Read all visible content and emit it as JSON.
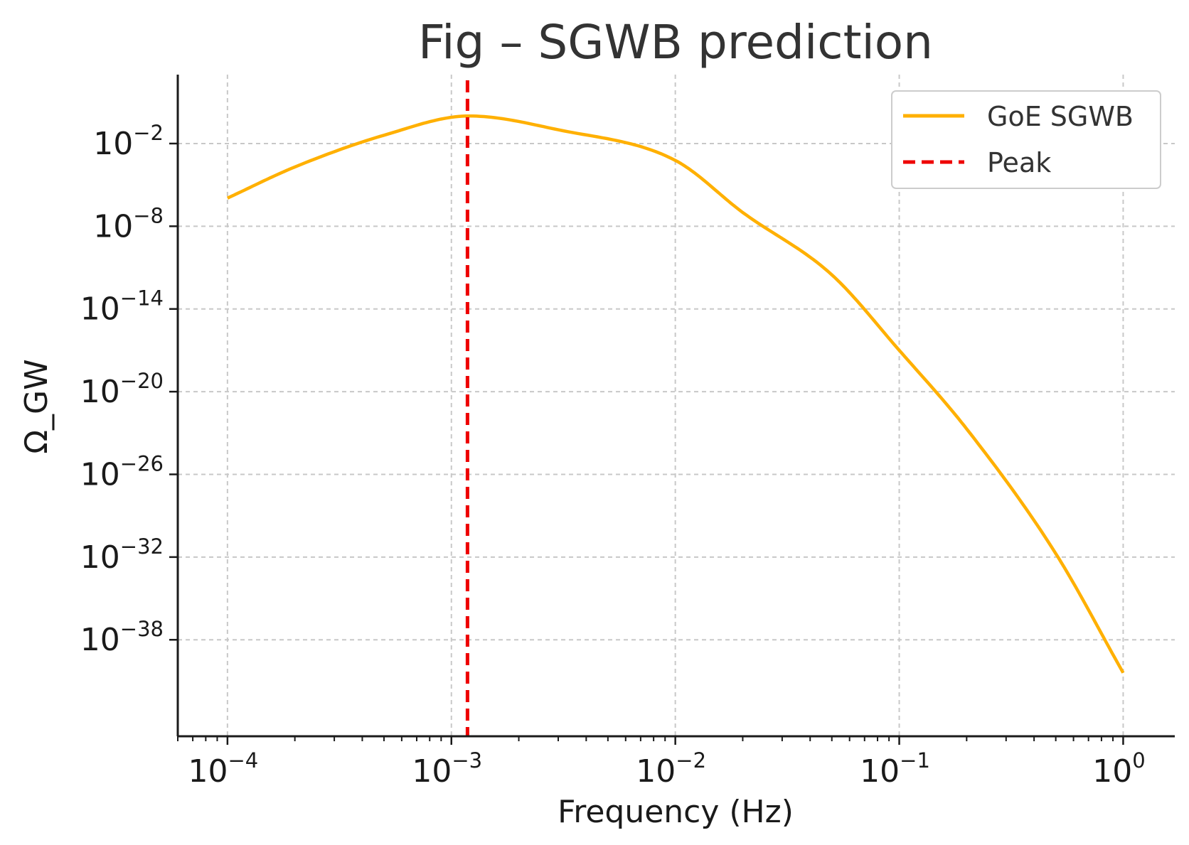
{
  "chart_data": {
    "type": "line",
    "title": "Fig – SGWB prediction",
    "xlabel": "Frequency (Hz)",
    "ylabel": "Ω_GW",
    "x_scale": "log",
    "y_scale": "log",
    "xlim": [
      6e-05,
      1.7
    ],
    "ylim": [
      1e-45,
      1000.0
    ],
    "grid": true,
    "legend_position": "top-right",
    "x_ticks": [
      {
        "value": 0.0001,
        "base": "10",
        "exp": "−4"
      },
      {
        "value": 0.001,
        "base": "10",
        "exp": "−3"
      },
      {
        "value": 0.01,
        "base": "10",
        "exp": "−2"
      },
      {
        "value": 0.1,
        "base": "10",
        "exp": "−1"
      },
      {
        "value": 1,
        "base": "10",
        "exp": "0"
      }
    ],
    "y_ticks": [
      {
        "value": 0.01,
        "base": "10",
        "exp": "−2"
      },
      {
        "value": 1e-08,
        "base": "10",
        "exp": "−8"
      },
      {
        "value": 1e-14,
        "base": "10",
        "exp": "−14"
      },
      {
        "value": 1e-20,
        "base": "10",
        "exp": "−20"
      },
      {
        "value": 1e-26,
        "base": "10",
        "exp": "−26"
      },
      {
        "value": 1e-32,
        "base": "10",
        "exp": "−32"
      },
      {
        "value": 1e-38,
        "base": "10",
        "exp": "−38"
      }
    ],
    "series": [
      {
        "name": "GoE SGWB",
        "color": "#FFB000",
        "style": "solid",
        "x": [
          0.0001,
          0.0002,
          0.0005,
          0.0012,
          0.003,
          0.01,
          0.02,
          0.05,
          0.1,
          0.2,
          0.5,
          1.0
        ],
        "y": [
          1.1e-06,
          0.0002,
          0.04,
          1.0,
          0.1,
          0.0006,
          1e-07,
          3e-12,
          1e-17,
          2e-23,
          1.8e-32,
          4e-41
        ]
      },
      {
        "name": "Peak",
        "color": "#EE0000",
        "style": "dashed",
        "x_value": 0.00118
      }
    ]
  }
}
